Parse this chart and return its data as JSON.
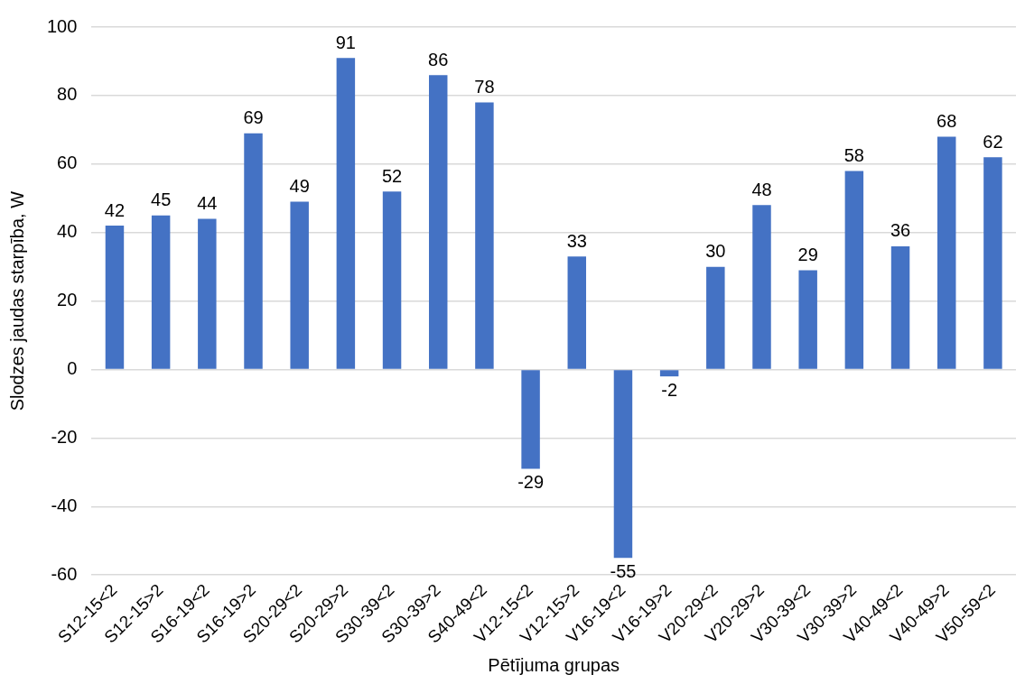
{
  "chart_data": {
    "type": "bar",
    "xlabel": "Pētījuma grupas",
    "ylabel": "Slodzes jaudas starpība, W",
    "categories": [
      "S12-15<2",
      "S12-15>2",
      "S16-19<2",
      "S16-19>2",
      "S20-29<2",
      "S20-29>2",
      "S30-39<2",
      "S30-39>2",
      "S40-49<2",
      "V12-15<2",
      "V12-15>2",
      "V16-19<2",
      "V16-19>2",
      "V20-29<2",
      "V20-29>2",
      "V30-39<2",
      "V30-39>2",
      "V40-49<2",
      "V40-49>2",
      "V50-59<2"
    ],
    "values": [
      42,
      45,
      44,
      69,
      49,
      91,
      52,
      86,
      78,
      -29,
      33,
      -55,
      -2,
      30,
      48,
      29,
      58,
      36,
      68,
      62
    ],
    "color": "#4472c4",
    "ylim": [
      -60,
      100
    ],
    "yticks": [
      -60,
      -40,
      -20,
      0,
      20,
      40,
      60,
      80,
      100
    ],
    "grid": "y",
    "data_labels": true
  }
}
